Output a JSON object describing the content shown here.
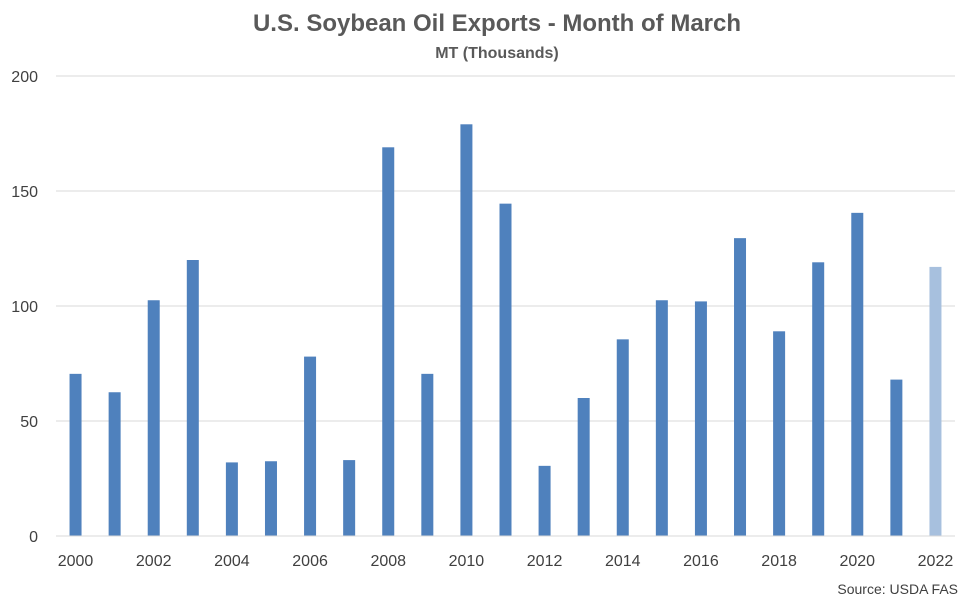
{
  "chart_data": {
    "type": "bar",
    "title": "U.S. Soybean Oil Exports - Month of March",
    "subtitle": "MT (Thousands)",
    "xlabel": "",
    "ylabel": "",
    "ylim": [
      0,
      200
    ],
    "yticks": [
      "0",
      "50",
      "100",
      "150",
      "200"
    ],
    "categories": [
      "2000",
      "2001",
      "2002",
      "2003",
      "2004",
      "2005",
      "2006",
      "2007",
      "2008",
      "2009",
      "2010",
      "2011",
      "2012",
      "2013",
      "2014",
      "2015",
      "2016",
      "2017",
      "2018",
      "2019",
      "2020",
      "2021",
      "2022"
    ],
    "x_tick_labels": [
      "2000",
      "2002",
      "2004",
      "2006",
      "2008",
      "2010",
      "2012",
      "2014",
      "2016",
      "2018",
      "2020",
      "2022"
    ],
    "values": [
      70.5,
      62.5,
      102.5,
      120,
      32,
      32.5,
      78,
      33,
      169,
      70.5,
      179,
      144.5,
      30.5,
      60,
      85.5,
      102.5,
      102,
      129.5,
      89,
      119,
      140.5,
      68,
      117
    ],
    "grid": true,
    "legend": "none",
    "colors": {
      "bar": "#4f81bd",
      "highlight_bar": "#a7c0de"
    },
    "highlight_category": "2022",
    "source": "Source: USDA FAS"
  }
}
